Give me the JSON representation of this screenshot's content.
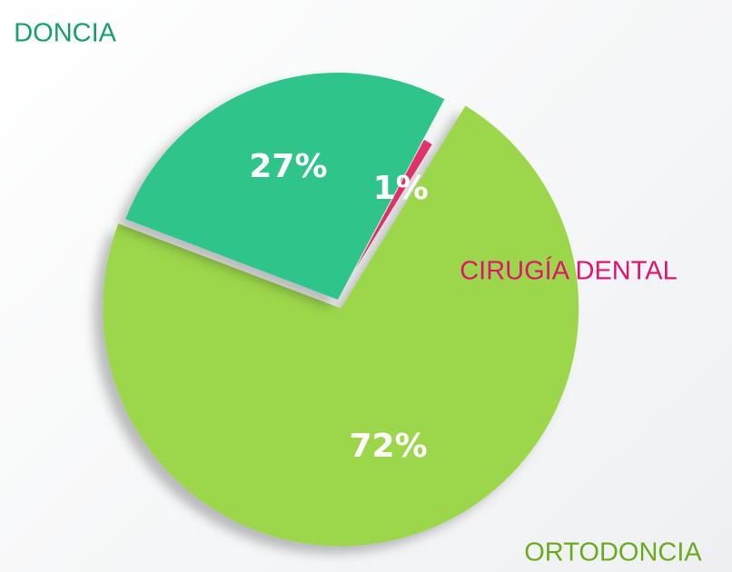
{
  "chart_data": {
    "type": "pie",
    "categories": [
      "CIRUGÍA DENTAL",
      "ORTODONCIA",
      "DONCIA"
    ],
    "values": [
      1,
      72,
      27
    ],
    "value_labels": [
      "1%",
      "72%",
      "27%"
    ],
    "colors": [
      "#e8336f",
      "#9cd64c",
      "#2ec48a"
    ],
    "label_colors": [
      "#e2136f",
      "#6aab1f",
      "#16a06c"
    ]
  }
}
